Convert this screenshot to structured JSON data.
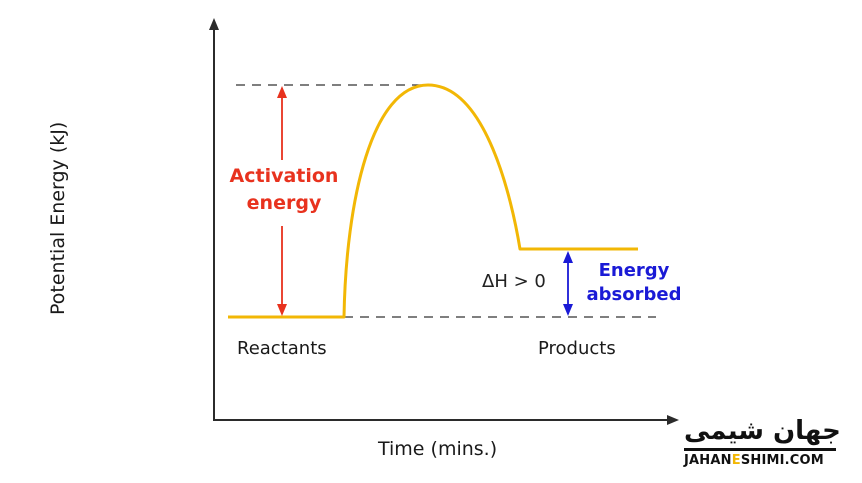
{
  "diagram": {
    "ylabel": "Potential Energy (kJ)",
    "xlabel": "Time (mins.)",
    "activation_label_line1": "Activation",
    "activation_label_line2": "energy",
    "absorbed_label_line1": "Energy",
    "absorbed_label_line2": "absorbed",
    "delta_h_label": "ΔH > 0",
    "reactants_label": "Reactants",
    "products_label": "Products"
  },
  "colors": {
    "curve": "#f2b705",
    "activation_arrow": "#e8321e",
    "absorbed_arrow": "#1a1ad6",
    "axes": "#2b2b2b",
    "dashed": "#333333"
  },
  "watermark": {
    "persian": "جهان شیمی",
    "english_prefix": "JAHAN",
    "english_letter": "E",
    "english_suffix": "SHIMI.COM"
  }
}
